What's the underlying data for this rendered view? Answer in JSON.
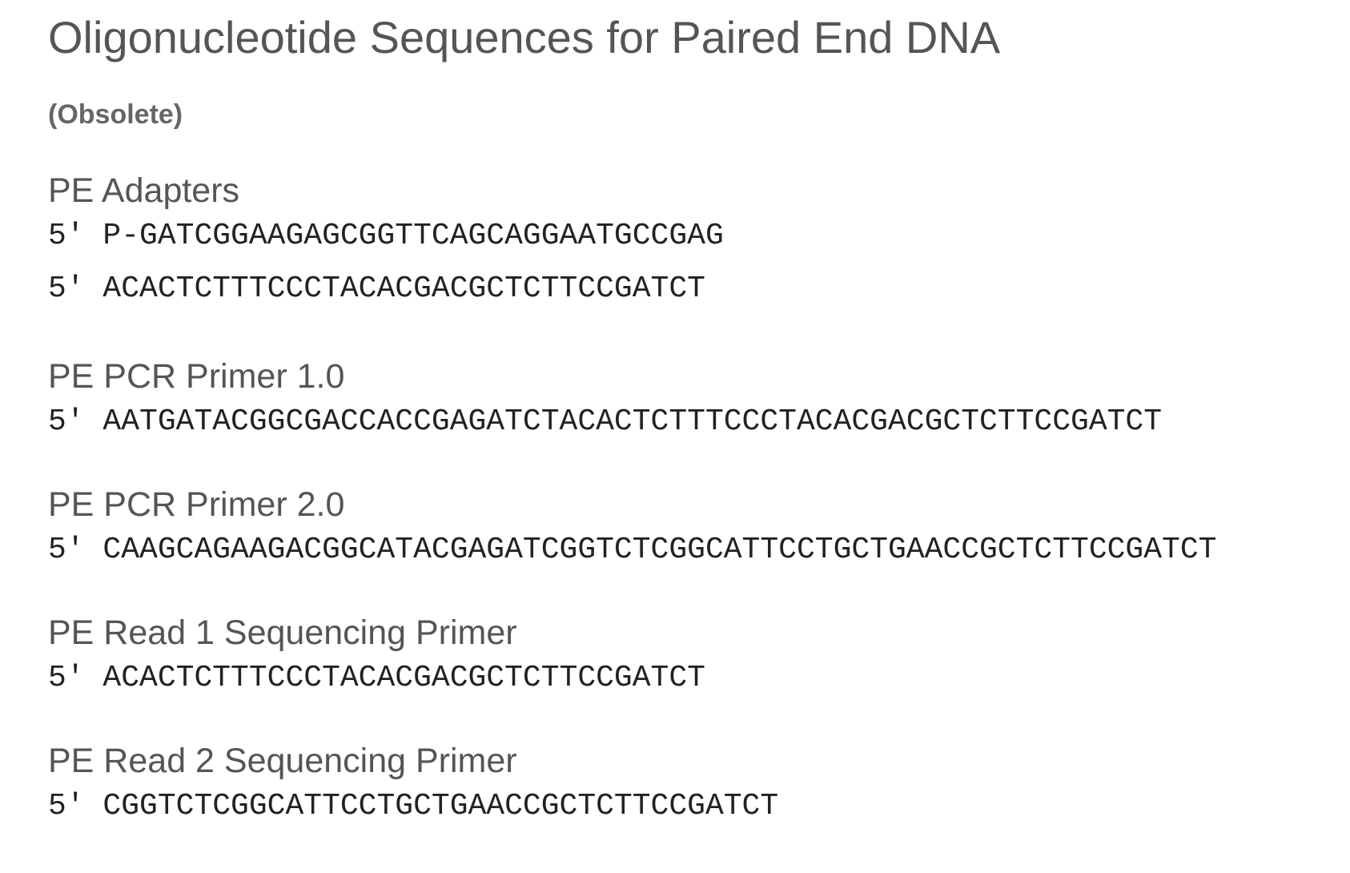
{
  "title": "Oligonucleotide Sequences for Paired End DNA",
  "subtitle": "(Obsolete)",
  "sections": [
    {
      "heading": "PE Adapters",
      "sequences": [
        {
          "prefix": "5' ",
          "sequence": "P-GATCGGAAGAGCGGTTCAGCAGGAATGCCGAG"
        },
        {
          "prefix": "5' ",
          "sequence": "ACACTCTTTCCCTACACGACGCTCTTCCGATCT"
        }
      ]
    },
    {
      "heading": "PE PCR Primer 1.0",
      "sequences": [
        {
          "prefix": "5' ",
          "sequence": "AATGATACGGCGACCACCGAGATCTACACTCTTTCCCTACACGACGCTCTTCCGATCT"
        }
      ]
    },
    {
      "heading": "PE PCR Primer 2.0",
      "sequences": [
        {
          "prefix": "5' ",
          "sequence": "CAAGCAGAAGACGGCATACGAGATCGGTCTCGGCATTCCTGCTGAACCGCTCTTCCGATCT"
        }
      ]
    },
    {
      "heading": "PE Read 1 Sequencing Primer",
      "sequences": [
        {
          "prefix": "5' ",
          "sequence": "ACACTCTTTCCCTACACGACGCTCTTCCGATCT"
        }
      ]
    },
    {
      "heading": "PE Read 2 Sequencing Primer",
      "sequences": [
        {
          "prefix": "5' ",
          "sequence": "CGGTCTCGGCATTCCTGCTGAACCGCTCTTCCGATCT"
        }
      ]
    }
  ]
}
